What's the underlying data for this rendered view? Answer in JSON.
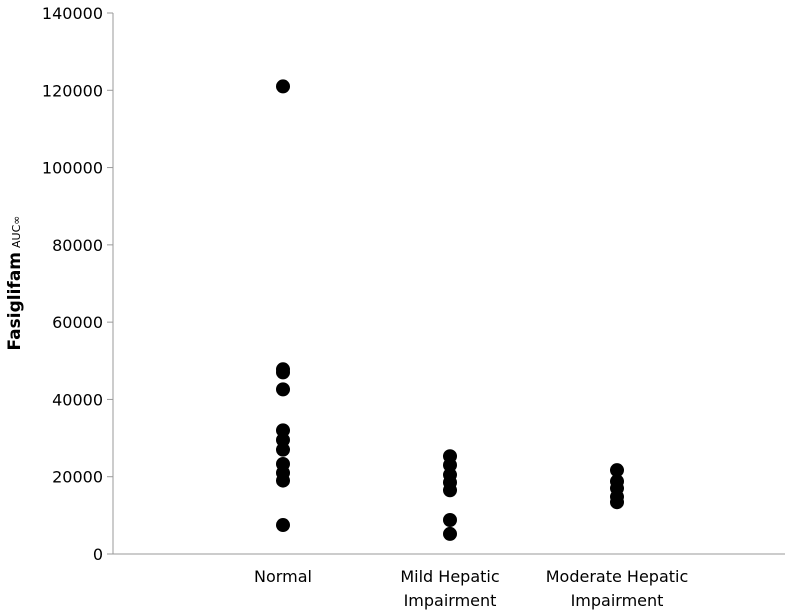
{
  "chart_data": {
    "type": "strip",
    "y_label": "Fasiglifam",
    "y_label_sub": "AUC∞",
    "categories": [
      [
        "Normal"
      ],
      [
        "Mild Hepatic",
        "Impairment"
      ],
      [
        "Moderate Hepatic",
        "Impairment"
      ]
    ],
    "values": [
      [
        121000,
        47800,
        47000,
        42600,
        32000,
        29500,
        27000,
        23300,
        21000,
        19000,
        7500
      ],
      [
        25300,
        23000,
        20500,
        18500,
        16500,
        8800,
        5200
      ],
      [
        21700,
        18800,
        17000,
        14800,
        13400
      ]
    ],
    "color": "#000000",
    "ylim": [
      0,
      140000
    ],
    "yticks": [
      0,
      20000,
      40000,
      60000,
      80000,
      100000,
      120000,
      140000
    ]
  }
}
